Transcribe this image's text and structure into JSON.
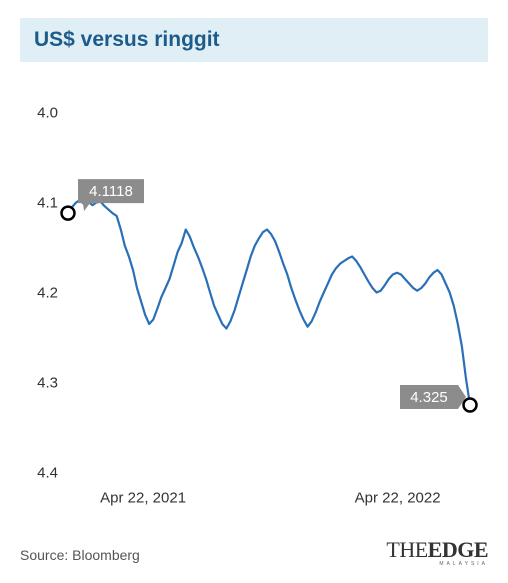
{
  "chart": {
    "type": "line",
    "title": "US$ versus ringgit",
    "title_bg": "#e0eef6",
    "title_color": "#1d5b8a",
    "title_fontsize": 21,
    "background_color": "#ffffff",
    "line_color": "#2a70b8",
    "line_width": 2.2,
    "marker_stroke": "#000000",
    "marker_fill": "#ffffff",
    "marker_radius": 6.5,
    "badge_bg": "#8c8c8c",
    "badge_text_color": "#ffffff",
    "ylim": [
      4.0,
      4.4
    ],
    "y_inverted": true,
    "yticks": [
      4.0,
      4.1,
      4.2,
      4.3,
      4.4
    ],
    "ytick_labels": [
      "4.0",
      "4.1",
      "4.2",
      "4.3",
      "4.4"
    ],
    "label_fontsize": 15,
    "xtick_labels": [
      "Apr 22, 2021",
      "Apr 22, 2022"
    ],
    "start_badge": "4.1118",
    "end_badge": "4.325",
    "series": [
      4.1118,
      4.105,
      4.1,
      4.097,
      4.102,
      4.099,
      4.103,
      4.1,
      4.099,
      4.104,
      4.108,
      4.112,
      4.115,
      4.13,
      4.148,
      4.16,
      4.175,
      4.195,
      4.21,
      4.225,
      4.235,
      4.23,
      4.218,
      4.205,
      4.195,
      4.185,
      4.17,
      4.155,
      4.145,
      4.13,
      4.138,
      4.15,
      4.16,
      4.172,
      4.185,
      4.2,
      4.215,
      4.225,
      4.235,
      4.24,
      4.232,
      4.22,
      4.205,
      4.19,
      4.175,
      4.16,
      4.148,
      4.14,
      4.133,
      4.13,
      4.135,
      4.143,
      4.155,
      4.168,
      4.18,
      4.195,
      4.208,
      4.22,
      4.23,
      4.238,
      4.232,
      4.222,
      4.21,
      4.2,
      4.19,
      4.18,
      4.173,
      4.168,
      4.165,
      4.162,
      4.16,
      4.165,
      4.172,
      4.18,
      4.188,
      4.195,
      4.2,
      4.198,
      4.192,
      4.185,
      4.18,
      4.178,
      4.18,
      4.185,
      4.19,
      4.195,
      4.198,
      4.195,
      4.19,
      4.183,
      4.178,
      4.175,
      4.18,
      4.19,
      4.2,
      4.215,
      4.235,
      4.26,
      4.295,
      4.325
    ]
  },
  "source": "Source: Bloomberg",
  "logo": {
    "the": "THE",
    "edge": "EDGE",
    "sub": "MALAYSIA"
  }
}
